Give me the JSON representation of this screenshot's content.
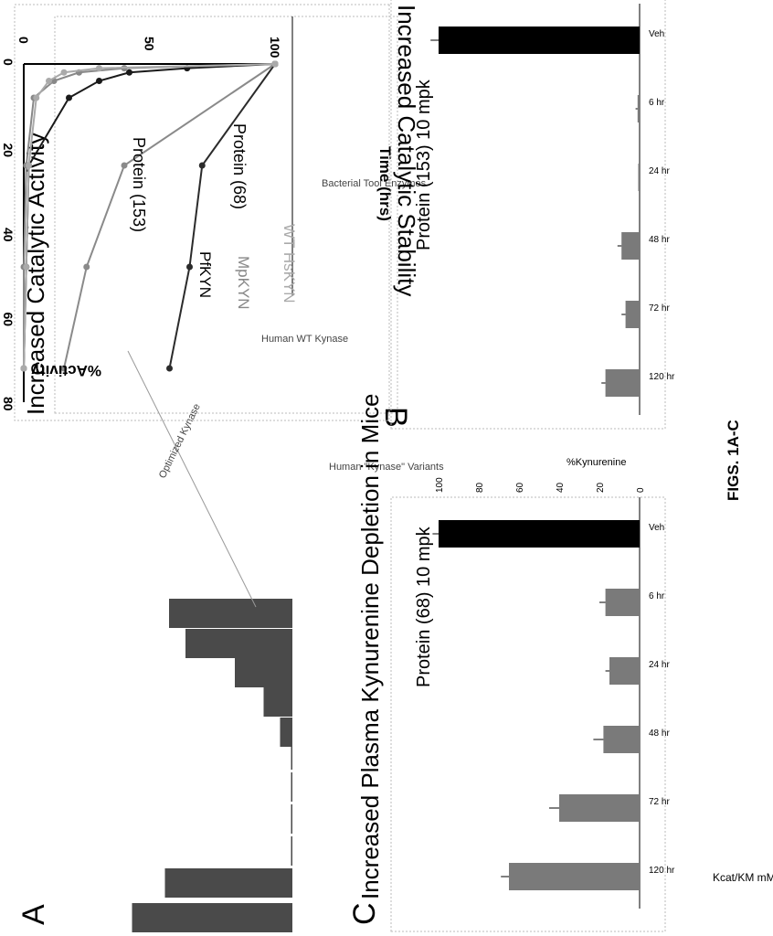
{
  "figure_label": "FIGS. 1A-C",
  "panels": {
    "a": {
      "letter": "A"
    },
    "b": {
      "letter": "B"
    },
    "c": {
      "letter": "C"
    }
  },
  "chart_data": [
    {
      "id": "A",
      "type": "bar",
      "title": "Increased Catalytic Activity",
      "ylabel": "Kcat/KM mM⁻¹s⁻¹",
      "ylim": [
        0,
        100
      ],
      "yticks": [
        "0",
        "20",
        "40",
        "60",
        "80",
        "100"
      ],
      "values": [
        78,
        62,
        0.5,
        0.5,
        0.5,
        0.5,
        6,
        14,
        28,
        52,
        60
      ],
      "group_labels": [
        "Bacterial Tool Enzymes",
        "Human \"Kynase\" Variants"
      ],
      "annotations": [
        "Human WT Kynase",
        "Optimized Kynase"
      ],
      "grid": false
    },
    {
      "id": "B",
      "type": "line",
      "title": "Increased Catalytic Stability",
      "xlabel": "Time (hrs)",
      "ylabel": "%Activity",
      "xlim": [
        0,
        80
      ],
      "ylim": [
        0,
        100
      ],
      "xticks": [
        "0",
        "20",
        "40",
        "60",
        "80"
      ],
      "yticks": [
        "0",
        "50",
        "100"
      ],
      "series": [
        {
          "name": "Protein (153)",
          "color": "#2b2b2b",
          "x": [
            0,
            24,
            48,
            72
          ],
          "y": [
            100,
            71,
            66,
            58
          ]
        },
        {
          "name": "Protein (68)",
          "color": "#8a8a8a",
          "x": [
            0,
            24,
            48,
            72
          ],
          "y": [
            100,
            40,
            25,
            16
          ]
        },
        {
          "name": "PfKYN",
          "color": "#1a1a1a",
          "x": [
            0,
            1,
            2,
            4,
            8,
            24,
            48,
            72
          ],
          "y": [
            100,
            65,
            42,
            30,
            18,
            2,
            1,
            0
          ]
        },
        {
          "name": "MpKYN",
          "color": "#888888",
          "x": [
            0,
            1,
            2,
            4,
            8,
            24,
            48,
            72
          ],
          "y": [
            100,
            40,
            22,
            12,
            4,
            1,
            0,
            0
          ]
        },
        {
          "name": "WT HsKYN",
          "color": "#aaaaaa",
          "x": [
            0,
            1,
            2,
            4,
            8,
            24,
            48,
            72
          ],
          "y": [
            100,
            30,
            16,
            10,
            5,
            2,
            1,
            0
          ]
        }
      ],
      "grid": false
    },
    {
      "id": "C",
      "type": "bar",
      "title": "Increased Plasma Kynurenine Depletion in Mice",
      "charts": [
        {
          "subtitle": "Protein (68) 10 mpk",
          "ylabel": "%Kynurenine",
          "ylim": [
            0,
            100
          ],
          "yticks": [
            "0",
            "20",
            "40",
            "60",
            "80",
            "100"
          ],
          "categories": [
            "Veh",
            "6 hr",
            "24 hr",
            "48 hr",
            "72 hr",
            "120 hr"
          ],
          "values": [
            100,
            17,
            15,
            18,
            40,
            65
          ],
          "errors": [
            3,
            3,
            2,
            5,
            5,
            4
          ],
          "colors": [
            "#000000",
            "#7a7a7a",
            "#7a7a7a",
            "#7a7a7a",
            "#7a7a7a",
            "#7a7a7a"
          ]
        },
        {
          "subtitle": "Protein (153) 10 mpk",
          "ylabel": "%Kynurenine",
          "ylim": [
            0,
            100
          ],
          "yticks": [
            "0",
            "20",
            "40",
            "60",
            "80",
            "100"
          ],
          "categories": [
            "Veh",
            "6 hr",
            "24 hr",
            "48 hr",
            "72 hr",
            "120 hr"
          ],
          "values": [
            100,
            1,
            0,
            9,
            7,
            17
          ],
          "errors": [
            4,
            1,
            0,
            2,
            2,
            2
          ],
          "colors": [
            "#000000",
            "#7a7a7a",
            "#7a7a7a",
            "#7a7a7a",
            "#7a7a7a",
            "#7a7a7a"
          ]
        }
      ]
    }
  ]
}
